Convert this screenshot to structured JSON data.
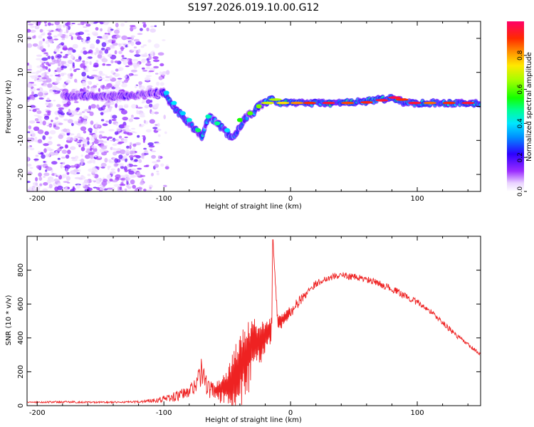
{
  "title": "S197.2026.019.10.00.G12",
  "chart_data": [
    {
      "type": "heatmap",
      "xlabel": "Height of straight line (km)",
      "ylabel": "Frequency (Hz)",
      "xlim": [
        -208,
        150
      ],
      "ylim": [
        -25,
        25
      ],
      "xticks": [
        -200,
        -100,
        0,
        100
      ],
      "xtick_labels": [
        "-200",
        "-100",
        "0",
        "100"
      ],
      "yticks": [
        -20,
        -10,
        0,
        10,
        20
      ],
      "ytick_labels": [
        "-20",
        "-10",
        "0",
        "10",
        "20"
      ],
      "colorbar": {
        "label": "Normalized spectral amplitude",
        "range": [
          0,
          1
        ],
        "ticks": [
          0.0,
          0.2,
          0.4,
          0.6,
          0.8
        ],
        "tick_labels": [
          "0.0",
          "0.2",
          "0.4",
          "0.6",
          "0.8"
        ]
      },
      "ridge": {
        "x": [
          -180,
          -150,
          -125,
          -110,
          -100,
          -95,
          -90,
          -85,
          -80,
          -75,
          -70,
          -65,
          -60,
          -55,
          -50,
          -45,
          -40,
          -35,
          -30,
          -25,
          -20,
          -15,
          -10,
          -5,
          0,
          20,
          40,
          60,
          80,
          85,
          90,
          100,
          120,
          150
        ],
        "freq": [
          3,
          3,
          3,
          4,
          4,
          1,
          -1,
          -3,
          -5,
          -7,
          -9,
          -3,
          -4,
          -6,
          -8,
          -9,
          -6,
          -3,
          -2,
          0,
          1,
          2,
          1,
          1,
          1,
          1,
          1,
          1.5,
          2.5,
          2,
          1,
          1,
          1,
          1
        ]
      }
    },
    {
      "type": "line",
      "xlabel": "Height of straight line (km)",
      "ylabel": "SNR (10 * v/v)",
      "xlim": [
        -208,
        150
      ],
      "ylim": [
        0,
        1000
      ],
      "xticks": [
        -200,
        -100,
        0,
        100
      ],
      "xtick_labels": [
        "-200",
        "-100",
        "0",
        "100"
      ],
      "yticks": [
        0,
        200,
        400,
        600,
        800
      ],
      "ytick_labels": [
        "0",
        "200",
        "400",
        "600",
        "800"
      ],
      "series": [
        {
          "name": "SNR",
          "color": "#ee2222",
          "x": [
            -208,
            -200,
            -180,
            -160,
            -140,
            -120,
            -110,
            -100,
            -90,
            -80,
            -75,
            -70,
            -65,
            -60,
            -55,
            -50,
            -45,
            -40,
            -35,
            -30,
            -25,
            -20,
            -15,
            -14,
            -10,
            -5,
            0,
            5,
            10,
            15,
            20,
            25,
            30,
            35,
            40,
            45,
            50,
            60,
            70,
            80,
            90,
            100,
            110,
            120,
            130,
            140,
            150
          ],
          "values": [
            20,
            20,
            22,
            20,
            20,
            22,
            30,
            40,
            55,
            80,
            130,
            200,
            100,
            90,
            110,
            130,
            170,
            250,
            330,
            370,
            400,
            430,
            460,
            980,
            490,
            520,
            560,
            600,
            640,
            690,
            720,
            740,
            755,
            765,
            770,
            765,
            760,
            745,
            720,
            690,
            650,
            610,
            560,
            490,
            420,
            360,
            300
          ],
          "noise": [
            5,
            5,
            8,
            6,
            6,
            8,
            15,
            25,
            40,
            50,
            70,
            110,
            70,
            60,
            100,
            150,
            250,
            320,
            330,
            260,
            180,
            120,
            100,
            0,
            60,
            50,
            50,
            40,
            40,
            30,
            25,
            25,
            25,
            25,
            25,
            25,
            25,
            25,
            25,
            25,
            25,
            25,
            20,
            20,
            20,
            15,
            15
          ]
        }
      ]
    }
  ]
}
